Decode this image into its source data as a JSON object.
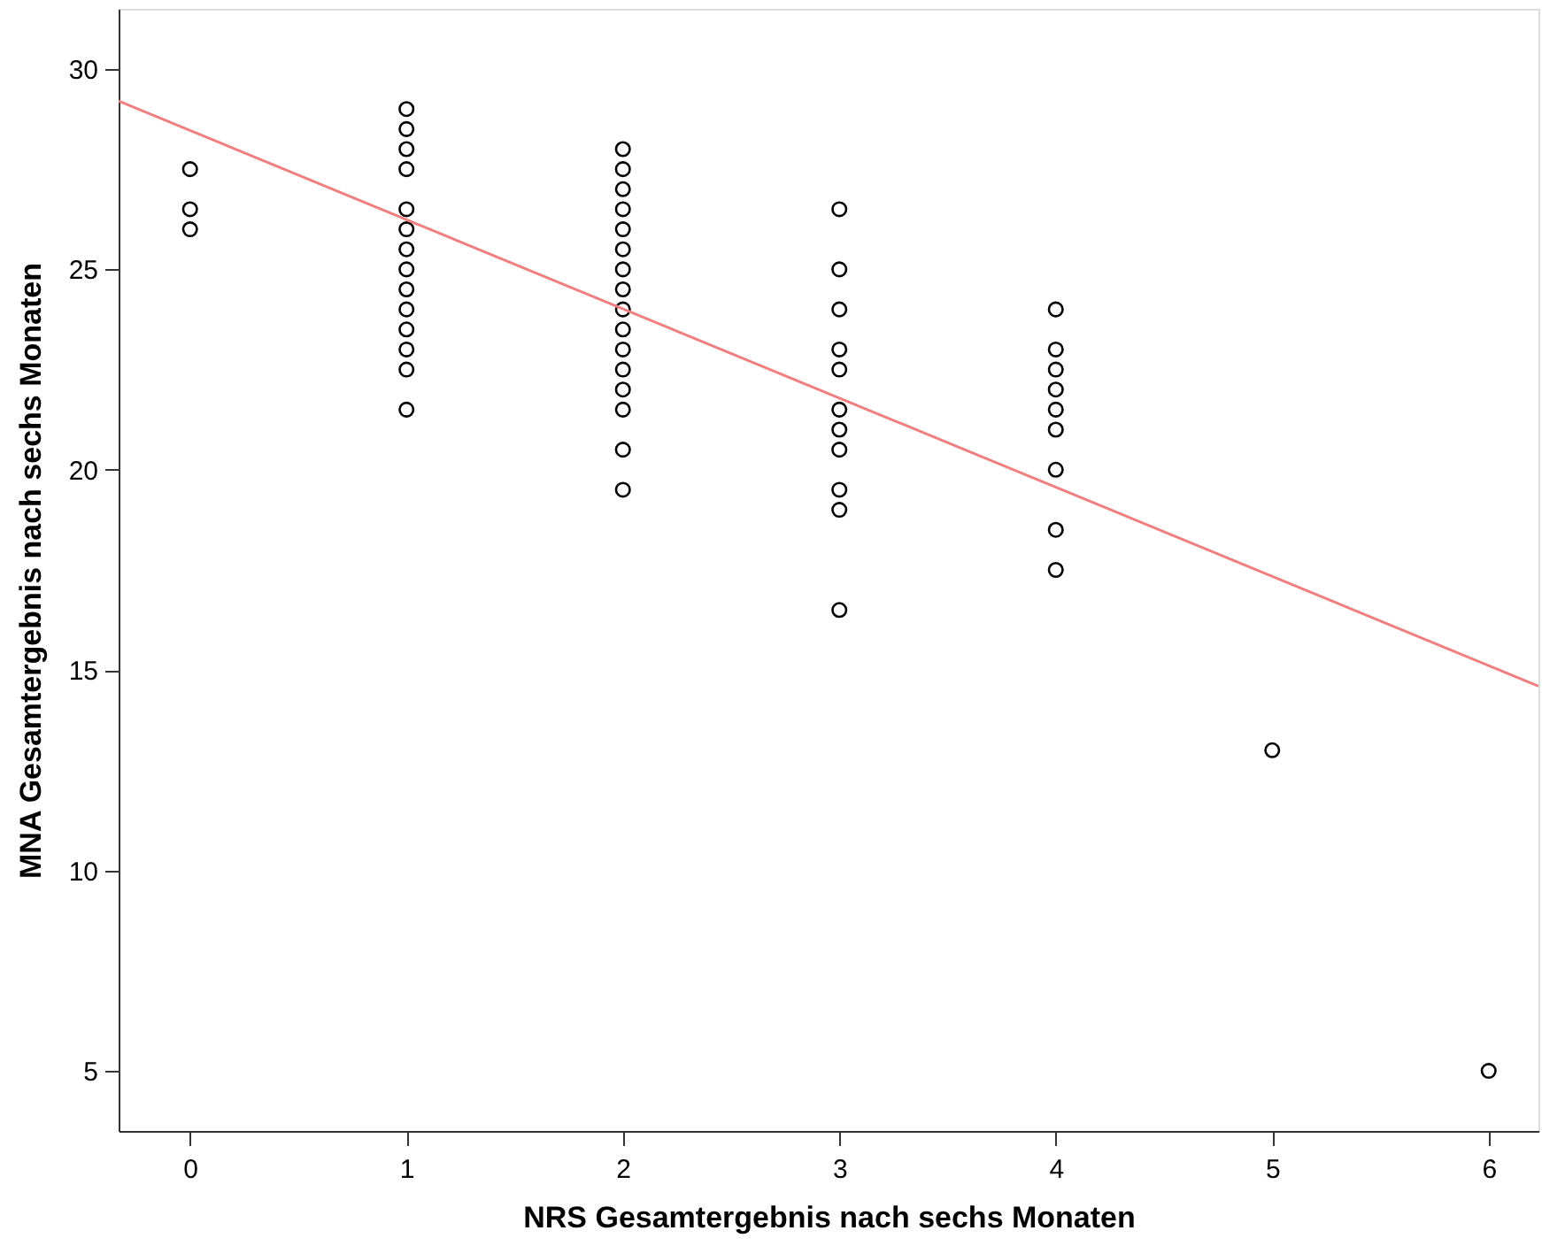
{
  "chart_data": {
    "type": "scatter",
    "xlabel": "NRS Gesamtergebnis nach sechs Monaten",
    "ylabel": "MNA Gesamtergebnis nach sechs Monaten",
    "xlim": [
      -0.33,
      6.23
    ],
    "ylim": [
      3.5,
      31.5
    ],
    "xticks": [
      0,
      1,
      2,
      3,
      4,
      5,
      6
    ],
    "yticks": [
      5,
      10,
      15,
      20,
      25,
      30
    ],
    "grid": false,
    "series": [
      {
        "color": "#000000",
        "marker": "circle",
        "x": [
          0,
          0,
          0,
          1,
          1,
          1,
          1,
          1,
          1,
          1,
          1,
          1,
          1,
          1,
          1,
          1,
          1,
          2,
          2,
          2,
          2,
          2,
          2,
          2,
          2,
          2,
          2,
          2,
          2,
          2,
          2,
          2,
          2,
          3,
          3,
          3,
          3,
          3,
          3,
          3,
          3,
          3,
          3,
          3,
          4,
          4,
          4,
          4,
          4,
          4,
          4,
          4,
          4,
          5,
          6
        ],
        "values": [
          27.5,
          26.5,
          26,
          29,
          28.5,
          28,
          27.5,
          26.5,
          26,
          25.5,
          25,
          24.5,
          24,
          23.5,
          23,
          22.5,
          21.5,
          28,
          27.5,
          27,
          26.5,
          26,
          25.5,
          25,
          24.5,
          24,
          23.5,
          23,
          22.5,
          22,
          21.5,
          20.5,
          19.5,
          26.5,
          25,
          24,
          23,
          22.5,
          21.5,
          21,
          20.5,
          19.5,
          19,
          16.5,
          24,
          23,
          22.5,
          22,
          21.5,
          21,
          20,
          18.5,
          17.5,
          13,
          5
        ]
      },
      {
        "type": "line",
        "color": "#f08080",
        "x": [
          -0.33,
          6.23
        ],
        "values": [
          29.2,
          14.6
        ]
      }
    ]
  }
}
